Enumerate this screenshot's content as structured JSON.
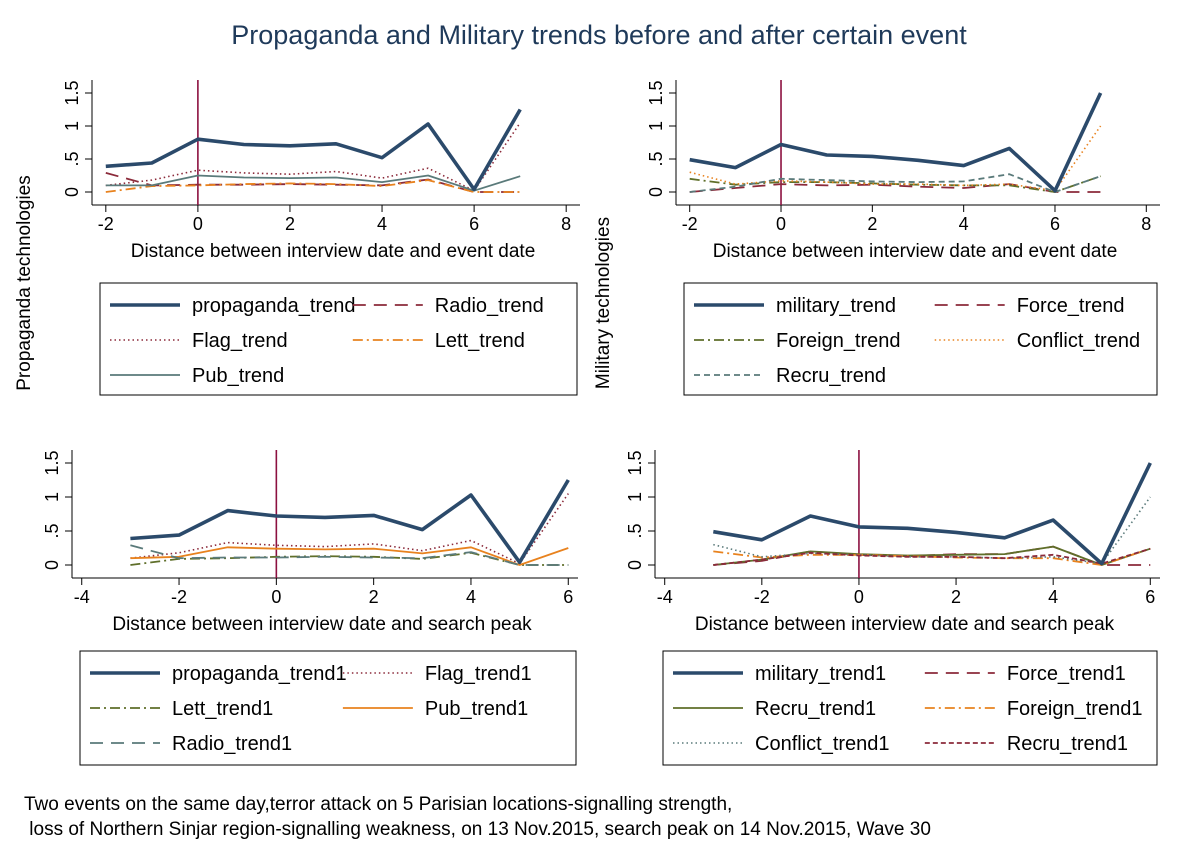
{
  "title": "Propaganda and Military trends before and after certain event",
  "note": {
    "line1": "Two events on the same day,terror attack on 5 Parisian locations-signalling strength,",
    "line2": " loss of Northern Sinjar region-signalling weakness, on 13 Nov.2015, search peak on 14 Nov.2015, Wave 30"
  },
  "ylabels": {
    "left": "Propaganda technologies",
    "right": "Military technologies"
  },
  "colors": {
    "navy": "#2b4a6b",
    "maroon": "#8b2a3a",
    "orange": "#e8821e",
    "olive": "#5f6f2a",
    "gray": "#5a7a7a",
    "vline": "#8c1040"
  },
  "chart_data": [
    {
      "type": "line",
      "xlabel": "Distance between interview date and event date",
      "xticks": [
        -2,
        0,
        2,
        4,
        6,
        8
      ],
      "xlim": [
        -2.3,
        8.3
      ],
      "yticks": [
        "0",
        ".5",
        "1",
        "1.5"
      ],
      "ylim": [
        -0.1,
        1.6
      ],
      "vline": 0,
      "grid": false,
      "legend": "below",
      "x": [
        -2,
        -1,
        0,
        1,
        2,
        3,
        4,
        5,
        6,
        7
      ],
      "series": [
        {
          "name": "propaganda_trend",
          "style": "thick",
          "color": "#2b4a6b",
          "values": [
            0.39,
            0.44,
            0.8,
            0.72,
            0.7,
            0.73,
            0.52,
            1.03,
            0.04,
            1.25
          ]
        },
        {
          "name": "Radio_trend",
          "style": "longdash",
          "color": "#8b2a3a",
          "values": [
            0.29,
            0.1,
            0.11,
            0.11,
            0.12,
            0.11,
            0.1,
            0.19,
            0.0,
            0.0
          ]
        },
        {
          "name": "Flag_trend",
          "style": "dot",
          "color": "#8b2a3a",
          "values": [
            0.1,
            0.18,
            0.33,
            0.29,
            0.27,
            0.31,
            0.21,
            0.36,
            0.02,
            1.05
          ]
        },
        {
          "name": "Lett_trend",
          "style": "dashdot",
          "color": "#e8821e",
          "values": [
            0.0,
            0.09,
            0.1,
            0.12,
            0.13,
            0.12,
            0.09,
            0.18,
            0.0,
            0.0
          ]
        },
        {
          "name": "Pub_trend",
          "style": "solid",
          "color": "#5a7a7a",
          "values": [
            0.1,
            0.1,
            0.25,
            0.22,
            0.21,
            0.22,
            0.15,
            0.25,
            0.02,
            0.24
          ]
        }
      ]
    },
    {
      "type": "line",
      "xlabel": "Distance between interview date and event date",
      "xticks": [
        -2,
        0,
        2,
        4,
        6,
        8
      ],
      "xlim": [
        -2.3,
        8.3
      ],
      "yticks": [
        "0",
        ".5",
        "1",
        "1.5"
      ],
      "ylim": [
        -0.1,
        1.6
      ],
      "vline": 0,
      "grid": false,
      "legend": "below",
      "x": [
        -2,
        -1,
        0,
        1,
        2,
        3,
        4,
        5,
        6,
        7
      ],
      "series": [
        {
          "name": "military_trend",
          "style": "thick",
          "color": "#2b4a6b",
          "values": [
            0.49,
            0.37,
            0.72,
            0.56,
            0.54,
            0.48,
            0.4,
            0.66,
            0.02,
            1.5
          ]
        },
        {
          "name": "Force_trend",
          "style": "longdash",
          "color": "#8b2a3a",
          "values": [
            0.0,
            0.06,
            0.12,
            0.1,
            0.11,
            0.08,
            0.06,
            0.12,
            0.0,
            0.0
          ]
        },
        {
          "name": "Foreign_trend",
          "style": "dashdot",
          "color": "#5f6f2a",
          "values": [
            0.2,
            0.11,
            0.15,
            0.15,
            0.13,
            0.11,
            0.1,
            0.1,
            0.0,
            0.24
          ]
        },
        {
          "name": "Conflict_trend",
          "style": "dot",
          "color": "#e8821e",
          "values": [
            0.3,
            0.12,
            0.17,
            0.15,
            0.12,
            0.12,
            0.1,
            0.12,
            0.02,
            1.0
          ]
        },
        {
          "name": "Recru_trend",
          "style": "dash",
          "color": "#5a7a7a",
          "values": [
            0.0,
            0.08,
            0.2,
            0.18,
            0.16,
            0.15,
            0.16,
            0.27,
            0.0,
            0.24
          ]
        }
      ]
    },
    {
      "type": "line",
      "xlabel": "Distance between interview date and search peak",
      "xticks": [
        -4,
        -2,
        0,
        2,
        4,
        6
      ],
      "xlim": [
        -4.2,
        6.2
      ],
      "yticks": [
        "0",
        ".5",
        "1",
        "1.5"
      ],
      "ylim": [
        -0.1,
        1.6
      ],
      "vline": 0,
      "grid": false,
      "legend": "below",
      "x": [
        -3,
        -2,
        -1,
        0,
        1,
        2,
        3,
        4,
        5,
        6
      ],
      "series": [
        {
          "name": "propaganda_trend1",
          "style": "thick",
          "color": "#2b4a6b",
          "values": [
            0.39,
            0.44,
            0.8,
            0.72,
            0.7,
            0.73,
            0.52,
            1.03,
            0.04,
            1.25
          ]
        },
        {
          "name": "Flag_trend1",
          "style": "dot",
          "color": "#8b2a3a",
          "values": [
            0.1,
            0.18,
            0.33,
            0.29,
            0.27,
            0.31,
            0.21,
            0.36,
            0.02,
            1.05
          ]
        },
        {
          "name": "Lett_trend1",
          "style": "dashdot",
          "color": "#5f6f2a",
          "values": [
            0.0,
            0.09,
            0.1,
            0.12,
            0.13,
            0.12,
            0.09,
            0.18,
            0.0,
            0.0
          ]
        },
        {
          "name": "Pub_trend1",
          "style": "solid",
          "color": "#e8821e",
          "values": [
            0.1,
            0.12,
            0.26,
            0.24,
            0.23,
            0.24,
            0.17,
            0.26,
            0.0,
            0.25
          ]
        },
        {
          "name": "Radio_trend1",
          "style": "longdash",
          "color": "#5a7a7a",
          "values": [
            0.29,
            0.1,
            0.11,
            0.11,
            0.12,
            0.11,
            0.1,
            0.19,
            0.0,
            0.0
          ]
        }
      ]
    },
    {
      "type": "line",
      "xlabel": "Distance between interview date and search peak",
      "xticks": [
        -4,
        -2,
        0,
        2,
        4,
        6
      ],
      "xlim": [
        -4.2,
        6.2
      ],
      "yticks": [
        "0",
        ".5",
        "1",
        "1.5"
      ],
      "ylim": [
        -0.1,
        1.6
      ],
      "vline": 0,
      "grid": false,
      "legend": "below",
      "x": [
        -3,
        -2,
        -1,
        0,
        1,
        2,
        3,
        4,
        5,
        6
      ],
      "series": [
        {
          "name": "military_trend1",
          "style": "thick",
          "color": "#2b4a6b",
          "values": [
            0.49,
            0.37,
            0.72,
            0.56,
            0.54,
            0.48,
            0.4,
            0.66,
            0.02,
            1.5
          ]
        },
        {
          "name": "Force_trend1",
          "style": "longdash",
          "color": "#8b2a3a",
          "values": [
            0.0,
            0.06,
            0.2,
            0.15,
            0.13,
            0.16,
            0.16,
            0.27,
            0.0,
            0.0
          ]
        },
        {
          "name": "Recru_trend1",
          "style": "solid",
          "color": "#5f6f2a",
          "values": [
            0.0,
            0.08,
            0.2,
            0.16,
            0.14,
            0.15,
            0.16,
            0.27,
            0.0,
            0.24
          ]
        },
        {
          "name": "Foreign_trend1",
          "style": "dashdot",
          "color": "#e8821e",
          "values": [
            0.2,
            0.11,
            0.15,
            0.15,
            0.13,
            0.11,
            0.1,
            0.1,
            0.0,
            0.24
          ]
        },
        {
          "name": "Conflict_trend1",
          "style": "dot",
          "color": "#5a7a7a",
          "values": [
            0.3,
            0.12,
            0.17,
            0.15,
            0.12,
            0.12,
            0.1,
            0.12,
            0.02,
            1.0
          ]
        },
        {
          "name": "Recru_trend1",
          "style": "shortdash",
          "color": "#8b2a3a",
          "values": [
            0.0,
            0.08,
            0.18,
            0.14,
            0.12,
            0.12,
            0.1,
            0.15,
            0.02,
            0.24
          ]
        }
      ]
    }
  ]
}
